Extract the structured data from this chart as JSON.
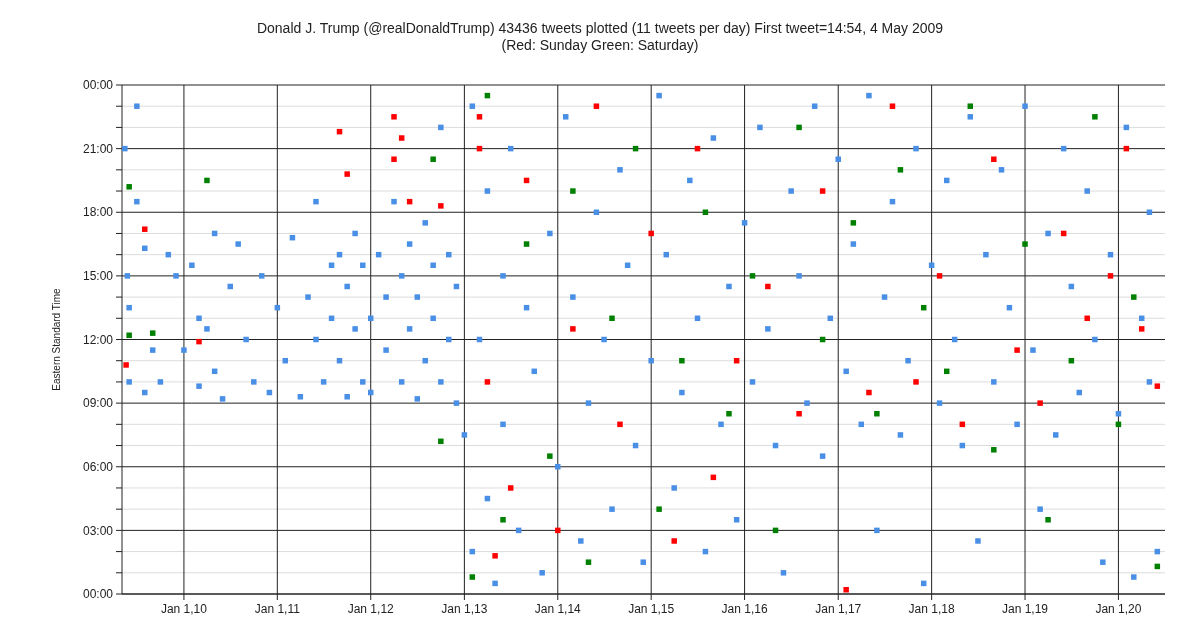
{
  "chart_data": {
    "type": "scatter",
    "title": "Donald J. Trump  (@realDonaldTrump)     43436 tweets plotted  (11 tweets per day)  First tweet=14:54, 4 May 2009",
    "subtitle": "(Red: Sunday  Green: Saturday)",
    "ylabel": "Eastern Standard Time",
    "marker": "square",
    "grid": true,
    "xlim": [
      "2009-05-04",
      "2020-07-01"
    ],
    "xticks": [
      {
        "value": "2010-01-01",
        "label": "Jan 1,10"
      },
      {
        "value": "2011-01-01",
        "label": "Jan 1,11"
      },
      {
        "value": "2012-01-01",
        "label": "Jan 1,12"
      },
      {
        "value": "2013-01-01",
        "label": "Jan 1,13"
      },
      {
        "value": "2014-01-01",
        "label": "Jan 1,14"
      },
      {
        "value": "2015-01-01",
        "label": "Jan 1,15"
      },
      {
        "value": "2016-01-01",
        "label": "Jan 1,16"
      },
      {
        "value": "2017-01-01",
        "label": "Jan 1,17"
      },
      {
        "value": "2018-01-01",
        "label": "Jan 1,18"
      },
      {
        "value": "2019-01-01",
        "label": "Jan 1,19"
      },
      {
        "value": "2020-01-01",
        "label": "Jan 1,20"
      }
    ],
    "ylim": [
      0,
      24
    ],
    "yticks": [
      {
        "value": 0,
        "label": "00:00"
      },
      {
        "value": 1,
        "label": null
      },
      {
        "value": 2,
        "label": null
      },
      {
        "value": 3,
        "label": "03:00"
      },
      {
        "value": 4,
        "label": null
      },
      {
        "value": 5,
        "label": null
      },
      {
        "value": 6,
        "label": "06:00"
      },
      {
        "value": 7,
        "label": null
      },
      {
        "value": 8,
        "label": null
      },
      {
        "value": 9,
        "label": "09:00"
      },
      {
        "value": 10,
        "label": null
      },
      {
        "value": 11,
        "label": null
      },
      {
        "value": 12,
        "label": "12:00"
      },
      {
        "value": 13,
        "label": null
      },
      {
        "value": 14,
        "label": null
      },
      {
        "value": 15,
        "label": "15:00"
      },
      {
        "value": 16,
        "label": null
      },
      {
        "value": 17,
        "label": null
      },
      {
        "value": 18,
        "label": "18:00"
      },
      {
        "value": 19,
        "label": null
      },
      {
        "value": 20,
        "label": null
      },
      {
        "value": 21,
        "label": "21:00"
      },
      {
        "value": 22,
        "label": null
      },
      {
        "value": 23,
        "label": null
      },
      {
        "value": 24,
        "label": "00:00"
      }
    ],
    "series": [
      {
        "color": "#4a8fe6",
        "x": [
          "2009-05-15",
          "2009-05-25",
          "2009-06",
          "2009-06",
          "2009-07",
          "2009-07",
          "2009-08",
          "2009-08",
          "2009-09",
          "2009-10",
          "2009-11",
          "2009-12",
          "2010-01",
          "2010-02",
          "2010-03",
          "2010-03",
          "2010-04",
          "2010-05",
          "2010-05",
          "2010-06",
          "2010-07",
          "2010-08",
          "2010-09",
          "2010-10",
          "2010-11",
          "2010-12",
          "2011-01",
          "2011-02",
          "2011-03",
          "2011-04",
          "2011-05",
          "2011-06",
          "2011-06",
          "2011-07",
          "2011-08",
          "2011-08",
          "2011-09",
          "2011-09",
          "2011-10",
          "2011-10",
          "2011-11",
          "2011-11",
          "2011-12",
          "2011-12",
          "2012-01",
          "2012-01",
          "2012-02",
          "2012-03",
          "2012-03",
          "2012-04",
          "2012-05",
          "2012-05",
          "2012-06",
          "2012-06",
          "2012-07",
          "2012-07",
          "2012-08",
          "2012-08",
          "2012-09",
          "2012-09",
          "2012-10",
          "2012-10",
          "2012-11",
          "2012-11",
          "2012-12",
          "2012-12",
          "2013-01",
          "2013-02",
          "2013-02",
          "2013-03",
          "2013-04",
          "2013-04",
          "2013-05",
          "2013-06",
          "2013-06",
          "2013-07",
          "2013-08",
          "2013-09",
          "2013-10",
          "2013-11",
          "2013-12",
          "2014-01",
          "2014-02",
          "2014-03",
          "2014-04",
          "2014-05",
          "2014-06",
          "2014-07",
          "2014-08",
          "2014-09",
          "2014-10",
          "2014-11",
          "2014-12",
          "2015-01",
          "2015-02",
          "2015-03",
          "2015-04",
          "2015-05",
          "2015-06",
          "2015-07",
          "2015-08",
          "2015-09",
          "2015-10",
          "2015-11",
          "2015-12",
          "2016-01",
          "2016-02",
          "2016-03",
          "2016-04",
          "2016-05",
          "2016-06",
          "2016-07",
          "2016-08",
          "2016-09",
          "2016-10",
          "2016-11",
          "2016-12",
          "2017-01",
          "2017-02",
          "2017-03",
          "2017-04",
          "2017-05",
          "2017-06",
          "2017-07",
          "2017-08",
          "2017-09",
          "2017-10",
          "2017-11",
          "2017-12",
          "2018-01",
          "2018-02",
          "2018-03",
          "2018-04",
          "2018-05",
          "2018-06",
          "2018-07",
          "2018-08",
          "2018-09",
          "2018-10",
          "2018-11",
          "2018-12",
          "2019-01",
          "2019-02",
          "2019-03",
          "2019-04",
          "2019-05",
          "2019-06",
          "2019-07",
          "2019-08",
          "2019-09",
          "2019-10",
          "2019-11",
          "2019-12",
          "2020-01",
          "2020-02",
          "2020-03",
          "2020-04",
          "2020-05",
          "2020-05",
          "2020-06"
        ],
        "values": [
          21,
          15,
          10,
          13.5,
          23,
          18.5,
          9.5,
          16.3,
          11.5,
          10,
          16,
          15,
          11.5,
          15.5,
          9.8,
          13,
          12.5,
          17,
          10.5,
          9.2,
          14.5,
          16.5,
          12,
          10,
          15,
          9.5,
          13.5,
          11,
          16.8,
          9.3,
          14,
          12,
          18.5,
          10,
          15.5,
          13,
          16,
          11,
          9.3,
          14.5,
          17,
          12.5,
          10,
          15.5,
          13,
          9.5,
          16,
          11.5,
          14,
          18.5,
          10,
          15,
          12.5,
          16.5,
          9.2,
          14,
          11,
          17.5,
          13,
          15.5,
          10,
          22,
          12,
          16,
          9,
          14.5,
          7.5,
          2,
          23,
          12,
          4.5,
          19,
          0.5,
          15,
          8,
          21,
          3,
          13.5,
          10.5,
          1,
          17,
          6,
          22.5,
          14,
          2.5,
          9,
          18,
          12,
          4,
          20,
          15.5,
          7,
          1.5,
          11,
          23.5,
          16,
          5,
          9.5,
          19.5,
          13,
          2,
          21.5,
          8,
          14.5,
          3.5,
          17.5,
          10,
          22,
          12.5,
          7,
          1,
          19,
          15,
          9,
          23,
          6.5,
          13,
          20.5,
          10.5,
          16.5,
          8,
          23.5,
          3,
          14,
          18.5,
          7.5,
          11,
          21,
          0.5,
          15.5,
          9,
          19.5,
          12,
          7,
          22.5,
          2.5,
          16,
          10,
          20,
          13.5,
          8,
          23,
          11.5,
          4,
          17,
          7.5,
          21,
          14.5,
          9.5,
          19,
          12,
          1.5,
          16,
          8.5,
          22,
          0.8,
          13,
          18,
          10,
          2
        ]
      },
      {
        "color": "#ff0000",
        "x": [
          "2009-05-20",
          "2009-08",
          "2010-03",
          "2011-09",
          "2011-10",
          "2012-04",
          "2012-04",
          "2012-05",
          "2012-06",
          "2012-10",
          "2013-03",
          "2013-03",
          "2013-04",
          "2013-05",
          "2013-07",
          "2013-09",
          "2014-01",
          "2014-03",
          "2014-06",
          "2014-09",
          "2015-01",
          "2015-04",
          "2015-07",
          "2015-09",
          "2015-12",
          "2016-04",
          "2016-08",
          "2016-11",
          "2017-02",
          "2017-05",
          "2017-08",
          "2017-11",
          "2018-02",
          "2018-05",
          "2018-09",
          "2018-12",
          "2019-03",
          "2019-06",
          "2019-09",
          "2019-12",
          "2020-02",
          "2020-04",
          "2020-06"
        ],
        "values": [
          10.8,
          17.2,
          11.9,
          21.8,
          19.8,
          22.5,
          20.5,
          21.5,
          18.5,
          18.3,
          21,
          22.5,
          10,
          1.8,
          5,
          19.5,
          3,
          12.5,
          23,
          8,
          17,
          2.5,
          21,
          5.5,
          11,
          14.5,
          8.5,
          19,
          0.2,
          9.5,
          23,
          10,
          15,
          8,
          20.5,
          11.5,
          9,
          17,
          13,
          15,
          21,
          12.5,
          9.8
        ]
      },
      {
        "color": "#008000",
        "x": [
          "2009-06",
          "2009-06",
          "2009-09",
          "2010-04",
          "2012-09",
          "2012-10",
          "2013-02",
          "2013-04",
          "2013-06",
          "2013-09",
          "2013-12",
          "2014-03",
          "2014-05",
          "2014-08",
          "2014-11",
          "2015-02",
          "2015-05",
          "2015-08",
          "2015-11",
          "2016-02",
          "2016-05",
          "2016-08",
          "2016-11",
          "2017-03",
          "2017-06",
          "2017-09",
          "2017-12",
          "2018-03",
          "2018-06",
          "2018-09",
          "2019-01",
          "2019-04",
          "2019-07",
          "2019-10",
          "2020-01",
          "2020-03",
          "2020-06"
        ],
        "values": [
          19.2,
          12.2,
          12.3,
          19.5,
          20.5,
          7.2,
          0.8,
          23.5,
          3.5,
          16.5,
          6.5,
          19,
          1.5,
          13,
          21,
          4,
          11,
          18,
          8.5,
          15,
          3,
          22,
          12,
          17.5,
          8.5,
          20,
          13.5,
          10.5,
          23,
          6.8,
          16.5,
          3.5,
          11,
          22.5,
          8,
          14,
          1.3
        ]
      }
    ]
  }
}
